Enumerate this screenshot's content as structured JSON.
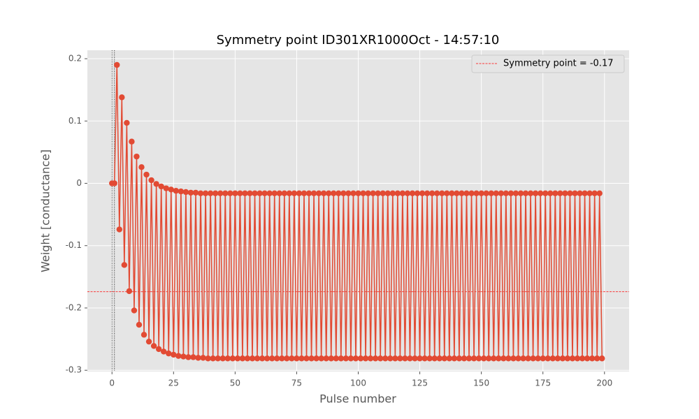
{
  "chart_data": {
    "type": "line",
    "title": "Symmetry point ID301XR1000Oct - 14:57:10",
    "xlabel": "Pulse number",
    "ylabel": "Weight [conductance]",
    "xlim": [
      -10,
      210
    ],
    "ylim": [
      -0.302,
      0.2135
    ],
    "xticks": [
      0,
      25,
      50,
      75,
      100,
      125,
      150,
      175,
      200
    ],
    "yticks": [
      -0.3,
      -0.2,
      -0.1,
      0.0,
      0.1,
      0.2
    ],
    "grid": true,
    "legend": "upper right",
    "hline": {
      "name": "Symmetry point = -0.17",
      "value": -0.174,
      "color": "#ff0000"
    },
    "vlines": [
      0,
      1
    ],
    "series": [
      {
        "color": "#e24a33",
        "x": [
          0,
          1,
          2,
          3,
          4,
          5,
          6,
          7,
          8,
          9,
          10,
          11,
          12,
          13,
          14,
          15,
          16,
          17,
          18,
          19,
          20,
          21,
          22,
          23,
          24,
          25,
          26,
          27,
          28,
          29,
          30,
          31,
          32,
          33,
          34,
          35,
          36,
          37,
          38,
          39,
          40,
          41,
          42,
          43,
          44,
          45,
          46,
          47,
          48,
          49,
          50,
          51,
          52,
          53,
          54,
          55,
          56,
          57,
          58,
          59,
          60,
          61,
          62,
          63,
          64,
          65,
          66,
          67,
          68,
          69,
          70,
          71,
          72,
          73,
          74,
          75,
          76,
          77,
          78,
          79,
          80,
          81,
          82,
          83,
          84,
          85,
          86,
          87,
          88,
          89,
          90,
          91,
          92,
          93,
          94,
          95,
          96,
          97,
          98,
          99,
          100,
          101,
          102,
          103,
          104,
          105,
          106,
          107,
          108,
          109,
          110,
          111,
          112,
          113,
          114,
          115,
          116,
          117,
          118,
          119,
          120,
          121,
          122,
          123,
          124,
          125,
          126,
          127,
          128,
          129,
          130,
          131,
          132,
          133,
          134,
          135,
          136,
          137,
          138,
          139,
          140,
          141,
          142,
          143,
          144,
          145,
          146,
          147,
          148,
          149,
          150,
          151,
          152,
          153,
          154,
          155,
          156,
          157,
          158,
          159,
          160,
          161,
          162,
          163,
          164,
          165,
          166,
          167,
          168,
          169,
          170,
          171,
          172,
          173,
          174,
          175,
          176,
          177,
          178,
          179,
          180,
          181,
          182,
          183,
          184,
          185,
          186,
          187,
          188,
          189,
          190,
          191,
          192,
          193,
          194,
          195,
          196,
          197,
          198,
          199
        ],
        "values": [
          0,
          0,
          0.19,
          -0.074,
          0.138,
          -0.131,
          0.097,
          -0.173,
          0.067,
          -0.204,
          0.043,
          -0.227,
          0.026,
          -0.243,
          0.014,
          -0.254,
          0.005,
          -0.261,
          -0.001,
          -0.266,
          -0.005,
          -0.27,
          -0.008,
          -0.273,
          -0.01,
          -0.275,
          -0.012,
          -0.277,
          -0.013,
          -0.278,
          -0.014,
          -0.279,
          -0.015,
          -0.279,
          -0.015,
          -0.28,
          -0.016,
          -0.28,
          -0.016,
          -0.281,
          -0.016,
          -0.281,
          -0.016,
          -0.281,
          -0.016,
          -0.281,
          -0.016,
          -0.281,
          -0.016,
          -0.281,
          -0.016,
          -0.281,
          -0.016,
          -0.281,
          -0.016,
          -0.281,
          -0.016,
          -0.281,
          -0.016,
          -0.281,
          -0.016,
          -0.281,
          -0.016,
          -0.281,
          -0.016,
          -0.281,
          -0.016,
          -0.281,
          -0.016,
          -0.281,
          -0.016,
          -0.281,
          -0.016,
          -0.281,
          -0.016,
          -0.281,
          -0.016,
          -0.281,
          -0.016,
          -0.281,
          -0.016,
          -0.281,
          -0.016,
          -0.281,
          -0.016,
          -0.281,
          -0.016,
          -0.281,
          -0.016,
          -0.281,
          -0.016,
          -0.281,
          -0.016,
          -0.281,
          -0.016,
          -0.281,
          -0.016,
          -0.281,
          -0.016,
          -0.281,
          -0.016,
          -0.281,
          -0.016,
          -0.281,
          -0.016,
          -0.281,
          -0.016,
          -0.281,
          -0.016,
          -0.281,
          -0.016,
          -0.281,
          -0.016,
          -0.281,
          -0.016,
          -0.281,
          -0.016,
          -0.281,
          -0.016,
          -0.281,
          -0.016,
          -0.281,
          -0.016,
          -0.281,
          -0.016,
          -0.281,
          -0.016,
          -0.281,
          -0.016,
          -0.281,
          -0.016,
          -0.281,
          -0.016,
          -0.281,
          -0.016,
          -0.281,
          -0.016,
          -0.281,
          -0.016,
          -0.281,
          -0.016,
          -0.281,
          -0.016,
          -0.281,
          -0.016,
          -0.281,
          -0.016,
          -0.281,
          -0.016,
          -0.281,
          -0.016,
          -0.281,
          -0.016,
          -0.281,
          -0.016,
          -0.281,
          -0.016,
          -0.281,
          -0.016,
          -0.281,
          -0.016,
          -0.281,
          -0.016,
          -0.281,
          -0.016,
          -0.281,
          -0.016,
          -0.281,
          -0.016,
          -0.281,
          -0.016,
          -0.281,
          -0.016,
          -0.281,
          -0.016,
          -0.281,
          -0.016,
          -0.281,
          -0.016,
          -0.281,
          -0.016,
          -0.281,
          -0.016,
          -0.281,
          -0.016,
          -0.281,
          -0.016,
          -0.281,
          -0.016,
          -0.281,
          -0.016,
          -0.281,
          -0.016,
          -0.281,
          -0.016,
          -0.281,
          -0.016,
          -0.281,
          -0.016,
          -0.281
        ]
      }
    ]
  }
}
